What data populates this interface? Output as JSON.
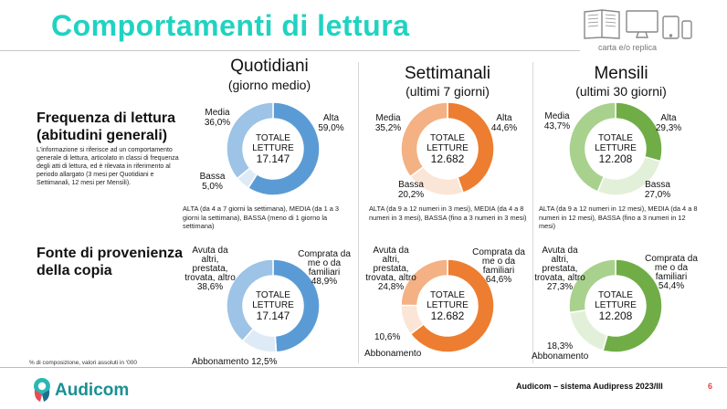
{
  "title": "Comportamenti di lettura",
  "replica_label": "carta e/o replica",
  "columns": [
    {
      "title": "Quotidiani",
      "subtitle": "(giorno medio)"
    },
    {
      "title": "Settimanali",
      "subtitle": "(ultimi 7 giorni)"
    },
    {
      "title": "Mensili",
      "subtitle": "(ultimi 30 giorni)"
    }
  ],
  "rows": [
    {
      "title": "Frequenza di lettura (abitudini generali)",
      "note": "L'informazione  si riferisce ad un comportamento generale di lettura, articolato in classi di frequenza degli atti di lettura, ed è rilevata in riferimento al periodo allargato (3 mesi per Quotidiani e Settimanali, 12 mesi per Mensili)."
    },
    {
      "title": "Fonte di provenienza della copia",
      "note": ""
    }
  ],
  "legends": [
    "ALTA (da 4 a 7 giorni la settimana), MEDIA (da 1 a 3 giorni la settimana), BASSA (meno di 1 giorno la settimana)",
    "ALTA (da 9 a 12 numeri in 3 mesi), MEDIA (da 4 a 8 numeri in 3 mesi), BASSA (fino a 3 numeri in 3 mesi)",
    "ALTA (da 9 a 12 numeri in 12 mesi), MEDIA (da 4 a 8 numeri in 12 mesi), BASSA (fino a 3 numeri in 12 mesi)"
  ],
  "center": {
    "line1": "TOTALE",
    "line2": "LETTURE"
  },
  "chart_data": [
    {
      "type": "pie",
      "id": "quot-freq",
      "title": "Quotidiani - Frequenza di lettura",
      "total": "17.147",
      "categories": [
        "Alta",
        "Bassa",
        "Media"
      ],
      "values": [
        59.0,
        5.0,
        36.0
      ],
      "labels": [
        "59,0%",
        "5,0%",
        "36,0%"
      ],
      "colors": [
        "#5b9bd5",
        "#deebf7",
        "#9dc3e6"
      ]
    },
    {
      "type": "pie",
      "id": "sett-freq",
      "title": "Settimanali - Frequenza di lettura",
      "total": "12.682",
      "categories": [
        "Alta",
        "Bassa",
        "Media"
      ],
      "values": [
        44.6,
        20.2,
        35.2
      ],
      "labels": [
        "44,6%",
        "20,2%",
        "35,2%"
      ],
      "colors": [
        "#ed7d31",
        "#fbe5d6",
        "#f4b183"
      ]
    },
    {
      "type": "pie",
      "id": "mens-freq",
      "title": "Mensili - Frequenza di lettura",
      "total": "12.208",
      "categories": [
        "Alta",
        "Bassa",
        "Media"
      ],
      "values": [
        29.3,
        27.0,
        43.7
      ],
      "labels": [
        "29,3%",
        "27,0%",
        "43,7%"
      ],
      "colors": [
        "#70ad47",
        "#e2f0d9",
        "#a9d18e"
      ]
    },
    {
      "type": "pie",
      "id": "quot-fonte",
      "title": "Quotidiani - Fonte di provenienza",
      "total": "17.147",
      "categories": [
        "Comprata da me o da familiari",
        "Abbonamento",
        "Avuta da altri, prestata, trovata, altro"
      ],
      "values": [
        48.9,
        12.5,
        38.6
      ],
      "labels": [
        "48,9%",
        "12,5%",
        "38,6%"
      ],
      "colors": [
        "#5b9bd5",
        "#deebf7",
        "#9dc3e6"
      ]
    },
    {
      "type": "pie",
      "id": "sett-fonte",
      "title": "Settimanali - Fonte di provenienza",
      "total": "12.682",
      "categories": [
        "Comprata da me o da familiari",
        "Abbonamento",
        "Avuta da altri, prestata, trovata, altro"
      ],
      "values": [
        64.6,
        10.6,
        24.8
      ],
      "labels": [
        "64,6%",
        "10,6%",
        "24,8%"
      ],
      "colors": [
        "#ed7d31",
        "#fbe5d6",
        "#f4b183"
      ]
    },
    {
      "type": "pie",
      "id": "mens-fonte",
      "title": "Mensili - Fonte di provenienza",
      "total": "12.208",
      "categories": [
        "Comprata da me o da familiari",
        "Abbonamento",
        "Avuta da altri, prestata, trovata, altro"
      ],
      "values": [
        54.4,
        18.3,
        27.3
      ],
      "labels": [
        "54,4%",
        "18,3%",
        "27,3%"
      ],
      "colors": [
        "#70ad47",
        "#e2f0d9",
        "#a9d18e"
      ]
    }
  ],
  "cat_labels": {
    "alta": "Alta",
    "media": "Media",
    "bassa": "Bassa",
    "comprata": "Comprata da me o da familiari",
    "avuta": "Avuta da altri, prestata, trovata, altro",
    "abbonamento": "Abbonamento"
  },
  "footnote": "% di composizione, valori assoluti in '000",
  "brand": "Audicom",
  "footer_text": "Audicom – sistema Audipress 2023/III",
  "page_number": "6",
  "accent_color": "#1fd3c1",
  "page_number_color": "#e8424b"
}
